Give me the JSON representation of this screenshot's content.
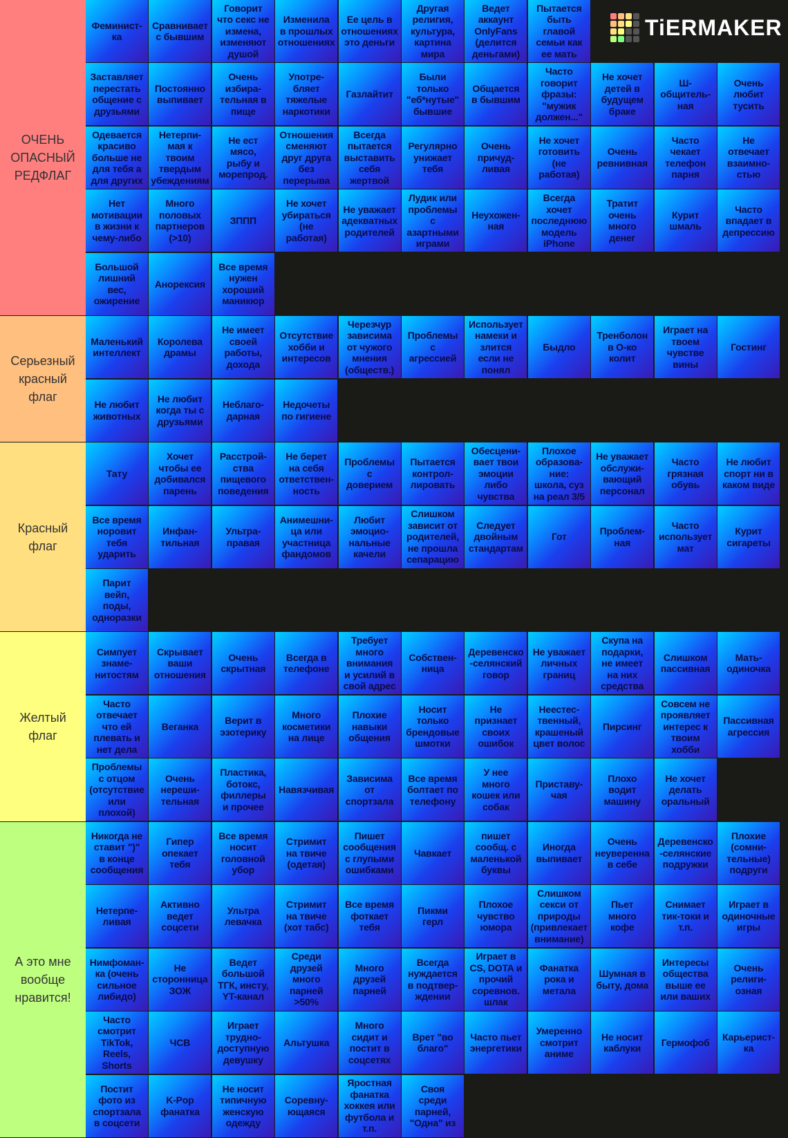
{
  "logo": "TiERMAKER",
  "tiers": [
    {
      "label": "ОЧЕНЬ\nОПАСНЫЙ\nРЕДФЛАГ",
      "rows": [
        [
          "Феминист-\nка",
          "Сравнивает\nс бывшим",
          "Говорит\nчто секс не\nизмена,\nизменяют\nдушой",
          "Изменила\nв прошлых\nотношениях",
          "Ее цель в\nотношениях\nэто деньги",
          "Другая\nрелигия,\nкультура,\nкартина\nмира",
          "Ведет\nаккаунт\nOnlyFans\n(делится\nденьгами)",
          "Пытается\nбыть\nглавой\nсемьи как\nее мать"
        ],
        [
          "Заставляет\nперестать\nобщение с\nдрузьями",
          "Постоянно\nвыпивает",
          "Очень\nизбира-\nтельная в\nпище",
          "Употре-\nбляет\nтяжелые\nнаркотики",
          "Газлайтит",
          "Были\nтолько\n\"еб*нутые\"\nбывшие",
          "Общается\nв бывшим",
          "Часто\nговорит\nфразы:\n\"мужик\nдолжен...\"",
          "Не хочет\nдетей в\nбудущем\nбраке",
          "Ш-\nобщитель-\nная",
          "Очень\nлюбит\nтусить"
        ],
        [
          "Одевается\nкрасиво\nбольше не\nдля тебя а\nдля других",
          "Нетерпи-\nмая к\nтвоим\nтвердым\nубеждениям",
          "Не ест\nмясо,\nрыбу и\nморепрод.",
          "Отношения\nсменяют\nдруг друга\nбез\nперерыва",
          "Всегда\nпытается\nвыставить\nсебя\nжертвой",
          "Регулярно\nунижает\nтебя",
          "Очень\nпричуд-\nливая",
          "Не хочет\nготовить\n(не\nработая)",
          "Очень\nревнивная",
          "Часто\nчекает\nтелефон\nпарня",
          "Не\nотвечает\nвзаимно-\nстью"
        ],
        [
          "Нет\nмотивации\nв жизни к\nчему-либо",
          "Много\nполовых\nпартнеров\n(>10)",
          "ЗППП",
          "Не хочет\nубираться\n(не\nработая)",
          "Не уважает\nадекватных\nродителей",
          "Лудик или\nпроблемы\nс\nазартными\nиграми",
          "Неухожен-\nная",
          "Всегда\nхочет\nпоследнюю\nмодель\niPhone",
          "Тратит\nочень\nмного\nденег",
          "Курит\nшмаль",
          "Часто\nвпадает в\nдепрессию"
        ],
        [
          "Большой\nлишний\nвес,\nожирение",
          "Анорексия",
          "Все время\nнужен\nхороший\nманикюр"
        ]
      ]
    },
    {
      "label": "Серьезный\nкрасный\nфлаг",
      "rows": [
        [
          "Маленький\nинтеллект",
          "Королева\nдрамы",
          "Не имеет\nсвоей\nработы,\nдохода",
          "Отсутствие\nхобби и\nинтересов",
          "Черезчур\nзависима\nот чужого\nмнения\n(обществ.)",
          "Проблемы\nс\nагрессией",
          "Использует\nнамеки и\nзлится\nесли не\nпонял",
          "Быдло",
          "Тренболон\nв О-ко\nколит",
          "Играет на\nтвоем\nчувстве\nвины",
          "Гостинг"
        ],
        [
          "Не любит\nживотных",
          "Не любит\nкогда ты с\nдрузьями",
          "Неблаго-\nдарная",
          "Недочеты\nпо гигиене"
        ]
      ]
    },
    {
      "label": "Красный\nфлаг",
      "rows": [
        [
          "Тату",
          "Хочет\nчтобы ее\nдобивался\nпарень",
          "Расстрой-\nства\nпищевого\nповедения",
          "Не берет\nна себя\nответствен-\nность",
          "Проблемы\nс\nдоверием",
          "Пытается\nконтрол-\nлировать",
          "Обесцени-\nвает твои\nэмоции\nлибо\nчувства",
          "Плохое\nобразова-\nние:\nшкола, суз\nна реал 3/5",
          "Не уважает\nобслужи-\nвающий\nперсонал",
          "Часто\nгрязная\nобувь",
          "Не любит\nспорт ни в\nкаком виде"
        ],
        [
          "Все время\nноровит\nтебя\nударить",
          "Инфан-\nтильная",
          "Ультра-\nправая",
          "Анимешни-\nца или\nучастница\nфандомов",
          "Любит\nэмоцио-\nнальные\nкачели",
          "Слишком\nзависит от\nродителей,\nне прошла\nсепарацию",
          "Следует\nдвойным\nстандартам",
          "Гот",
          "Проблем-\nная",
          "Часто\nиспользует\nмат",
          "Курит\nсигареты"
        ],
        [
          "Парит\nвейп,\nподы,\nодноразки"
        ]
      ]
    },
    {
      "label": "Желтый\nфлаг",
      "rows": [
        [
          "Симпует\nзнаме-\nнитостям",
          "Скрывает\nваши\nотношения",
          "Очень\nскрытная",
          "Всегда в\nтелефоне",
          "Требует\nмного\nвнимания\nи усилий в\nсвой адрес",
          "Собствен-\nница",
          "Деревенско\n-селянский\nговор",
          "Не уважает\nличных\nграниц",
          "Скупа на\nподарки,\nне имеет\nна них\nсредства",
          "Слишком\nпассивная",
          "Мать-\nодиночка"
        ],
        [
          "Часто\nотвечает\nчто ей\nплевать и\nнет дела",
          "Веганка",
          "Верит в\nэзотерику",
          "Много\nкосметики\nна лице",
          "Плохие\nнавыки\nобщения",
          "Носит\nтолько\nбрендовые\nшмотки",
          "Не\nпризнает\nсвоих\nошибок",
          "Неестес-\nтвенный,\nкрашеный\nцвет волос",
          "Пирсинг",
          "Совсем не\nпроявляет\nинтерес к\nтвоим\nхобби",
          "Пассивная\nагрессия"
        ],
        [
          "Проблемы\nс отцом\n(отсутствие\nили\nплохой)",
          "Очень\nнереши-\nтельная",
          "Пластика,\nботокс,\nфиллеры\nи прочее",
          "Навязчивая",
          "Зависима\nот\nспортзала",
          "Все время\nболтает по\nтелефону",
          "У нее\nмного\nкошек или\nсобак",
          "Приставу-\nчая",
          "Плохо\nводит\nмашину",
          "Не хочет\nделать\nоральный"
        ]
      ]
    },
    {
      "label": "А это мне\nвообще\nнравится!",
      "rows": [
        [
          "Никогда не\nставит \")\"\nв конце\nсообщения",
          "Гипер\nопекает\nтебя",
          "Все время\nносит\nголовной\nубор",
          "Стримит\nна твиче\n(одетая)",
          "Пишет\nсообщения\nс глупыми\nошибками",
          "Чавкает",
          "пишет\nсообщ. с\nмаленькой\nбуквы",
          "Иногда\nвыпивает",
          "Очень\nнеуверенна\nв себе",
          "Деревенско\n-селянские\nподружки",
          "Плохие\n(сомни-\nтельные)\nподруги"
        ],
        [
          "Нетерпе-\nливая",
          "Активно\nведет\nсоцсети",
          "Ультра\nлевачка",
          "Стримит\nна твиче\n(хот табс)",
          "Все время\nфоткает\nтебя",
          "Пикми\nгерл",
          "Плохое\nчувство\nюмора",
          "Слишком\nсекси от\nприроды\n(привлекает\nвнимание)",
          "Пьет\nмного\nкофе",
          "Снимает\nтик-токи и\nт.п.",
          "Играет в\nодиночные\nигры"
        ],
        [
          "Нимфоман-\nка (очень\nсильное\nлибидо)",
          "Не\nсторонница\nЗОЖ",
          "Ведет\nбольшой\nТГК, инсту,\nYT-канал",
          "Среди\nдрузей\nмного\nпарней\n>50%",
          "Много\nдрузей\nпарней",
          "Всегда\nнуждается\nв подтвер-\nждении",
          "Играет в\nCS, DOTA и\nпрочий\nсоревнов.\nшлак",
          "Фанатка\nрока и\nметала",
          "Шумная в\nбыту, дома",
          "Интересы\nобщества\nвыше ее\nили ваших",
          "Очень\nрелиги-\nозная"
        ],
        [
          "Часто\nсмотрит\nTikTok,\nReels,\nShorts",
          "ЧСВ",
          "Играет\nтрудно-\nдоступную\nдевушку",
          "Альтушка",
          "Много\nсидит и\nпостит в\nсоцсетях",
          "Врет \"во\nблаго\"",
          "Часто пьет\nэнергетики",
          "Умеренно\nсмотрит\nаниме",
          "Не носит\nкаблуки",
          "Гермофоб",
          "Карьерист-\nка"
        ],
        [
          "Постит\nфото из\nспортзала\nв соцсети",
          "K-Pop\nфанатка",
          "Не носит\nтипичную\nженскую\nодежду",
          "Соревну-\nющаяся",
          "Яростная\nфанатка\nхоккея или\nфутбола и\nт.п.",
          "Своя\nсреди\nпарней,\n\"Одна\" из"
        ]
      ]
    }
  ]
}
